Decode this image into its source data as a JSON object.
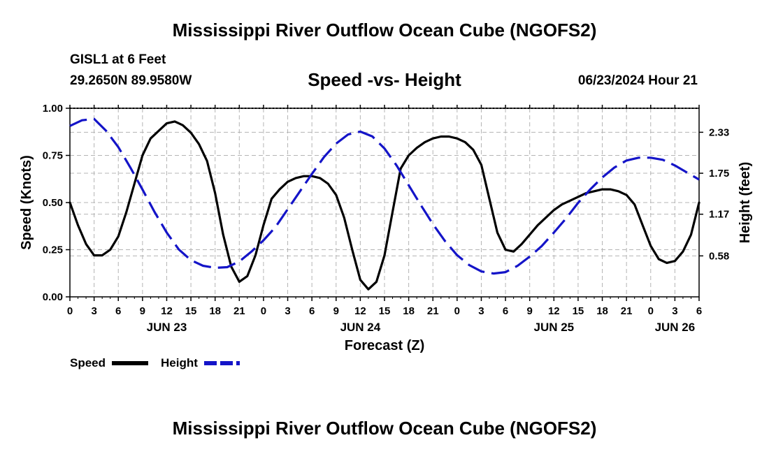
{
  "header": {
    "title": "Mississippi River Outflow Ocean Cube (NGOFS2)",
    "station": "GISL1 at 6 Feet",
    "coords": "29.2650N  89.9580W",
    "subtitle": "Speed -vs- Height",
    "datetime": "06/23/2024 Hour 21",
    "footer_title": "Mississippi River Outflow Ocean Cube (NGOFS2)"
  },
  "chart_data": {
    "type": "line",
    "title": "Speed -vs- Height",
    "xlabel": "Forecast (Z)",
    "ylabel": "Speed (Knots)",
    "y2label": "Height (feet)",
    "xlim": [
      0,
      78
    ],
    "ylim": [
      0,
      1.0
    ],
    "y2lim": [
      0.0,
      2.67
    ],
    "grid": true,
    "x_tick_labels": [
      "0",
      "3",
      "6",
      "9",
      "12",
      "15",
      "18",
      "21",
      "0",
      "3",
      "6",
      "9",
      "12",
      "15",
      "18",
      "21",
      "0",
      "3",
      "6",
      "9",
      "12",
      "15",
      "18",
      "21",
      "0",
      "3",
      "6"
    ],
    "y_ticks": [
      {
        "value": 0.0,
        "label": "0.00"
      },
      {
        "value": 0.25,
        "label": "0.25"
      },
      {
        "value": 0.5,
        "label": "0.50"
      },
      {
        "value": 0.75,
        "label": "0.75"
      },
      {
        "value": 1.0,
        "label": "1.00"
      }
    ],
    "y2_ticks": [
      {
        "value": 0.58,
        "label": "0.58"
      },
      {
        "value": 1.17,
        "label": "1.17"
      },
      {
        "value": 1.75,
        "label": "1.75"
      },
      {
        "value": 2.33,
        "label": "2.33"
      }
    ],
    "date_labels": [
      {
        "hour": 12,
        "label": "JUN 23"
      },
      {
        "hour": 36,
        "label": "JUN 24"
      },
      {
        "hour": 60,
        "label": "JUN 25"
      },
      {
        "hour": 75,
        "label": "JUN 26"
      }
    ],
    "legend": [
      {
        "name": "Speed",
        "color": "#000000",
        "style": "solid"
      },
      {
        "name": "Height",
        "color": "#1414c8",
        "style": "dashed"
      }
    ],
    "series": [
      {
        "name": "Speed",
        "axis": "left",
        "color": "#000000",
        "x": [
          0,
          1,
          2,
          3,
          4,
          5,
          6,
          7,
          8,
          9,
          10,
          11,
          12,
          13,
          14,
          15,
          16,
          17,
          18,
          19,
          20,
          21,
          22,
          23,
          24,
          25,
          26,
          27,
          28,
          29,
          30,
          31,
          32,
          33,
          34,
          35,
          36,
          37,
          38,
          39,
          40,
          41,
          42,
          43,
          44,
          45,
          46,
          47,
          48,
          49,
          50,
          51,
          52,
          53,
          54,
          55,
          56,
          57,
          58,
          59,
          60,
          61,
          62,
          63,
          64,
          65,
          66,
          67,
          68,
          69,
          70,
          71,
          72,
          73,
          74,
          75,
          76,
          77,
          78
        ],
        "values": [
          0.5,
          0.38,
          0.28,
          0.22,
          0.22,
          0.25,
          0.32,
          0.45,
          0.6,
          0.75,
          0.84,
          0.88,
          0.92,
          0.93,
          0.91,
          0.87,
          0.81,
          0.72,
          0.55,
          0.33,
          0.16,
          0.08,
          0.11,
          0.22,
          0.38,
          0.52,
          0.57,
          0.61,
          0.63,
          0.64,
          0.64,
          0.63,
          0.6,
          0.54,
          0.42,
          0.25,
          0.09,
          0.04,
          0.08,
          0.22,
          0.45,
          0.68,
          0.75,
          0.79,
          0.82,
          0.84,
          0.85,
          0.85,
          0.84,
          0.82,
          0.78,
          0.7,
          0.52,
          0.34,
          0.25,
          0.24,
          0.28,
          0.33,
          0.38,
          0.42,
          0.46,
          0.49,
          0.51,
          0.53,
          0.55,
          0.56,
          0.57,
          0.57,
          0.56,
          0.54,
          0.49,
          0.38,
          0.27,
          0.2,
          0.18,
          0.19,
          0.24,
          0.33,
          0.5
        ]
      },
      {
        "name": "Height",
        "axis": "right",
        "color": "#1414c8",
        "x": [
          0,
          1.5,
          3,
          4.5,
          6,
          7.5,
          9,
          10.5,
          12,
          13.5,
          15,
          16.5,
          18,
          19.5,
          21,
          22.5,
          24,
          25.5,
          27,
          28.5,
          30,
          31.5,
          33,
          34.5,
          36,
          37.5,
          39,
          40.5,
          42,
          43.5,
          45,
          46.5,
          48,
          49.5,
          51,
          52.5,
          54,
          55.5,
          57,
          58.5,
          60,
          61.5,
          63,
          64.5,
          66,
          67.5,
          69,
          70.5,
          72,
          73.5,
          75,
          76.5,
          78
        ],
        "values": [
          2.42,
          2.5,
          2.52,
          2.35,
          2.12,
          1.83,
          1.52,
          1.2,
          0.91,
          0.67,
          0.52,
          0.44,
          0.41,
          0.42,
          0.5,
          0.64,
          0.8,
          0.99,
          1.24,
          1.49,
          1.74,
          1.98,
          2.17,
          2.3,
          2.34,
          2.27,
          2.1,
          1.86,
          1.58,
          1.3,
          1.03,
          0.79,
          0.59,
          0.45,
          0.36,
          0.33,
          0.35,
          0.44,
          0.57,
          0.72,
          0.91,
          1.11,
          1.33,
          1.52,
          1.69,
          1.83,
          1.93,
          1.97,
          1.97,
          1.94,
          1.86,
          1.76,
          1.66
        ]
      }
    ]
  }
}
